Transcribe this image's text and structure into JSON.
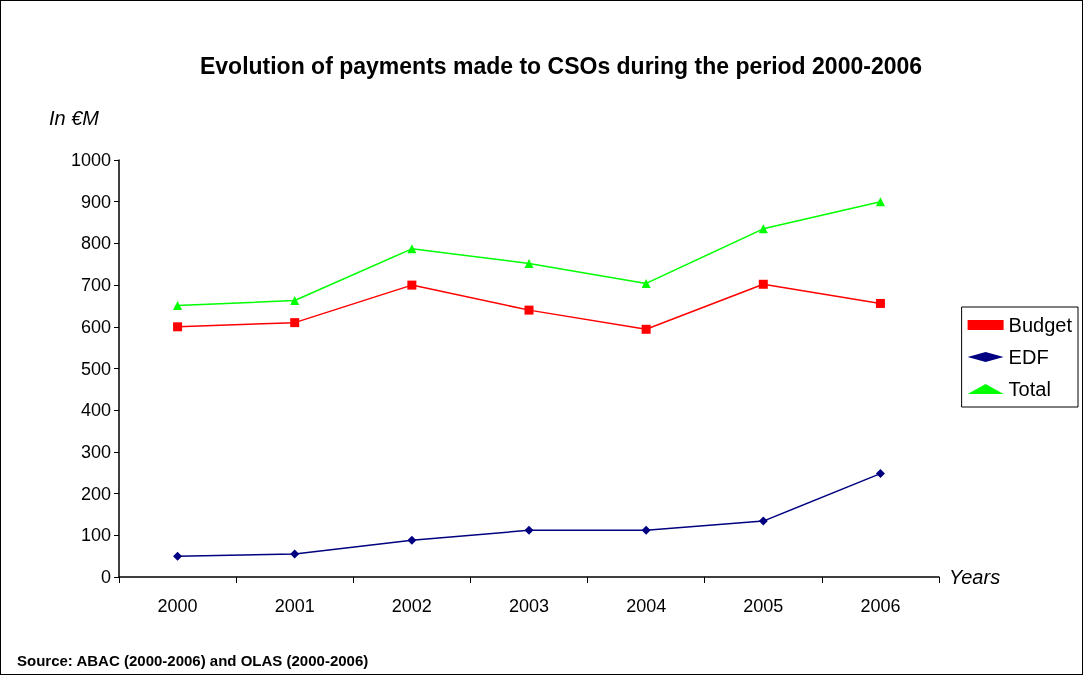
{
  "chart_data": {
    "type": "line",
    "title": "Evolution of payments made to CSOs during the period 2000-2006",
    "ylabel": "In €M",
    "xlabel": "Years",
    "annotations": [
      "Source: ABAC (2000-2006) and OLAS (2000-2006)"
    ],
    "categories": [
      "2000",
      "2001",
      "2002",
      "2003",
      "2004",
      "2005",
      "2006"
    ],
    "series": [
      {
        "name": "Budget",
        "color": "#ff0000",
        "marker": "square",
        "values": [
          600,
          610,
          700,
          640,
          594,
          702,
          656
        ]
      },
      {
        "name": "EDF",
        "color": "#000080",
        "marker": "diamond",
        "values": [
          50,
          55,
          88,
          112,
          112,
          134,
          248
        ]
      },
      {
        "name": "Total",
        "color": "#00ff00",
        "marker": "triangle",
        "values": [
          651,
          663,
          787,
          752,
          704,
          835,
          900
        ]
      }
    ],
    "ylim": [
      0,
      1000
    ],
    "yticks": [
      0,
      100,
      200,
      300,
      400,
      500,
      600,
      700,
      800,
      900,
      1000
    ],
    "grid": false,
    "legend": "right"
  }
}
